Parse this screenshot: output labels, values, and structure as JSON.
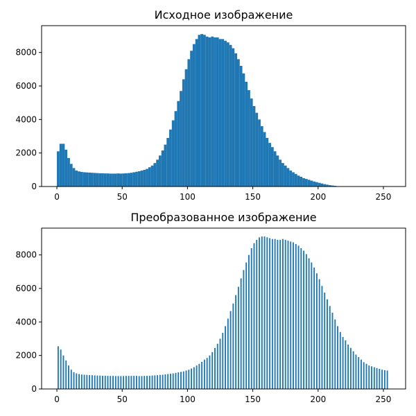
{
  "chart_data": [
    {
      "type": "histogram",
      "title": "Исходное изображение",
      "color": "#1f77b4",
      "bins": [
        0,
        2,
        4,
        6,
        8,
        10,
        12,
        14,
        16,
        18,
        20,
        22,
        24,
        26,
        28,
        30,
        32,
        34,
        36,
        38,
        40,
        42,
        44,
        46,
        48,
        50,
        52,
        54,
        56,
        58,
        60,
        62,
        64,
        66,
        68,
        70,
        72,
        74,
        76,
        78,
        80,
        82,
        84,
        86,
        88,
        90,
        92,
        94,
        96,
        98,
        100,
        102,
        104,
        106,
        108,
        110,
        112,
        114,
        116,
        118,
        120,
        122,
        124,
        126,
        128,
        130,
        132,
        134,
        136,
        138,
        140,
        142,
        144,
        146,
        148,
        150,
        152,
        154,
        156,
        158,
        160,
        162,
        164,
        166,
        168,
        170,
        172,
        174,
        176,
        178,
        180,
        182,
        184,
        186,
        188,
        190,
        192,
        194,
        196,
        198,
        200,
        202,
        204,
        206,
        208,
        210,
        212,
        214,
        216,
        218,
        220,
        222,
        224,
        226,
        228,
        230,
        232,
        234,
        236,
        238,
        240,
        242,
        244,
        246,
        248,
        250,
        252,
        254,
        256
      ],
      "values": [
        2100,
        2550,
        2550,
        2200,
        1700,
        1350,
        1100,
        950,
        900,
        870,
        850,
        840,
        830,
        820,
        810,
        800,
        790,
        790,
        780,
        780,
        770,
        770,
        770,
        780,
        770,
        780,
        790,
        800,
        820,
        850,
        880,
        910,
        950,
        990,
        1050,
        1150,
        1250,
        1400,
        1600,
        1850,
        2150,
        2500,
        2900,
        3400,
        3950,
        4500,
        5100,
        5700,
        6400,
        7000,
        7600,
        8100,
        8500,
        8800,
        9050,
        9100,
        9050,
        8950,
        8900,
        8950,
        8900,
        8900,
        8800,
        8800,
        8700,
        8600,
        8450,
        8250,
        7950,
        7600,
        7200,
        6750,
        6250,
        5750,
        5250,
        4800,
        4400,
        4000,
        3600,
        3250,
        2900,
        2600,
        2350,
        2100,
        1850,
        1600,
        1400,
        1250,
        1100,
        950,
        850,
        750,
        650,
        580,
        500,
        450,
        400,
        350,
        300,
        260,
        220,
        180,
        140,
        110,
        80,
        60,
        40,
        15,
        0,
        0,
        0,
        0,
        0,
        0,
        0,
        0,
        0,
        0,
        0,
        0,
        0,
        0,
        0,
        0,
        0,
        0,
        0,
        0
      ],
      "xlim": [
        -11.7,
        267
      ],
      "xticks": [
        0,
        50,
        100,
        150,
        200,
        250
      ],
      "ylim": [
        0,
        9600
      ],
      "yticks": [
        0,
        2000,
        4000,
        6000,
        8000
      ]
    },
    {
      "type": "bar",
      "title": "Преобразованное изображение",
      "color": "#1f77b4",
      "x": [
        1,
        3,
        5,
        7,
        9,
        11,
        13,
        15,
        17,
        19,
        21,
        23,
        25,
        27,
        29,
        31,
        33,
        35,
        37,
        39,
        41,
        43,
        45,
        47,
        49,
        51,
        53,
        55,
        57,
        59,
        61,
        63,
        65,
        67,
        69,
        71,
        73,
        75,
        77,
        79,
        81,
        83,
        85,
        87,
        89,
        91,
        93,
        95,
        97,
        99,
        101,
        103,
        105,
        107,
        109,
        111,
        113,
        115,
        117,
        119,
        121,
        123,
        125,
        127,
        129,
        131,
        133,
        135,
        137,
        139,
        141,
        143,
        145,
        147,
        149,
        151,
        153,
        155,
        157,
        159,
        161,
        163,
        165,
        167,
        169,
        171,
        173,
        175,
        177,
        179,
        181,
        183,
        185,
        187,
        189,
        191,
        193,
        195,
        197,
        199,
        201,
        203,
        205,
        207,
        209,
        211,
        213,
        215,
        217,
        219,
        221,
        223,
        225,
        227,
        229,
        231,
        233,
        235,
        237,
        239,
        241,
        243,
        245,
        247,
        249,
        251,
        253
      ],
      "values": [
        2550,
        2350,
        2000,
        1700,
        1400,
        1150,
        1000,
        930,
        890,
        860,
        850,
        840,
        830,
        820,
        810,
        800,
        800,
        790,
        790,
        780,
        780,
        780,
        770,
        770,
        770,
        770,
        780,
        780,
        780,
        780,
        780,
        770,
        770,
        780,
        780,
        790,
        800,
        810,
        820,
        840,
        850,
        870,
        890,
        910,
        930,
        960,
        990,
        1020,
        1050,
        1100,
        1150,
        1220,
        1300,
        1400,
        1500,
        1620,
        1750,
        1850,
        2000,
        2200,
        2450,
        2700,
        3000,
        3350,
        3750,
        4200,
        4650,
        5100,
        5600,
        6100,
        6600,
        7100,
        7550,
        8000,
        8400,
        8700,
        8900,
        9050,
        9100,
        9100,
        9050,
        9000,
        8950,
        8950,
        8900,
        8900,
        8950,
        8900,
        8850,
        8800,
        8750,
        8650,
        8550,
        8400,
        8250,
        8050,
        7800,
        7550,
        7250,
        6900,
        6550,
        6150,
        5750,
        5350,
        4950,
        4550,
        4150,
        3750,
        3400,
        3100,
        2900,
        2650,
        2450,
        2250,
        2050,
        1900,
        1750,
        1600,
        1500,
        1400,
        1350,
        1300,
        1250,
        1200,
        1150,
        1120,
        1100
      ],
      "xlim": [
        -11.7,
        267
      ],
      "xticks": [
        0,
        50,
        100,
        150,
        200,
        250
      ],
      "ylim": [
        0,
        9600
      ],
      "yticks": [
        0,
        2000,
        4000,
        6000,
        8000
      ]
    }
  ]
}
